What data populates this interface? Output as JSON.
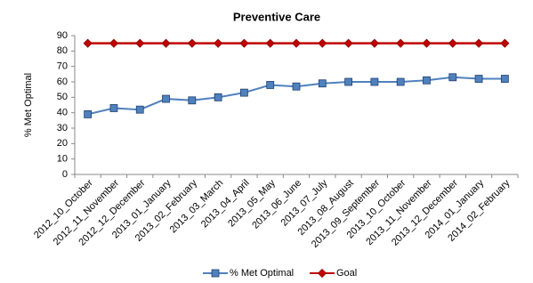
{
  "chart_data": {
    "type": "line",
    "title": "Preventive Care",
    "y_label": "% Met Optimal",
    "categories": [
      "2012_10_October",
      "2012_11_November",
      "2012_12_December",
      "2013_01_January",
      "2013_02_February",
      "2013_03_March",
      "2013_04_April",
      "2013_05_May",
      "2013_06_June",
      "2013_07_July",
      "2013_08_August",
      "2013_09_September",
      "2013_10_October",
      "2013_11_November",
      "2013_12_December",
      "2014_01_January",
      "2014_02_February"
    ],
    "series": [
      {
        "name": "% Met Optimal",
        "color": "#4f81bd",
        "marker": "square",
        "values": [
          39,
          43,
          42,
          49,
          48,
          50,
          53,
          58,
          57,
          59,
          60,
          60,
          60,
          61,
          63,
          62,
          62
        ]
      },
      {
        "name": "Goal",
        "color": "#c00000",
        "marker": "diamond",
        "values": [
          85,
          85,
          85,
          85,
          85,
          85,
          85,
          85,
          85,
          85,
          85,
          85,
          85,
          85,
          85,
          85,
          85
        ]
      }
    ],
    "ylim": [
      0,
      90
    ],
    "yticks": [
      0,
      10,
      20,
      30,
      40,
      50,
      60,
      70,
      80,
      90
    ],
    "grid": false,
    "legend": "bottom"
  }
}
